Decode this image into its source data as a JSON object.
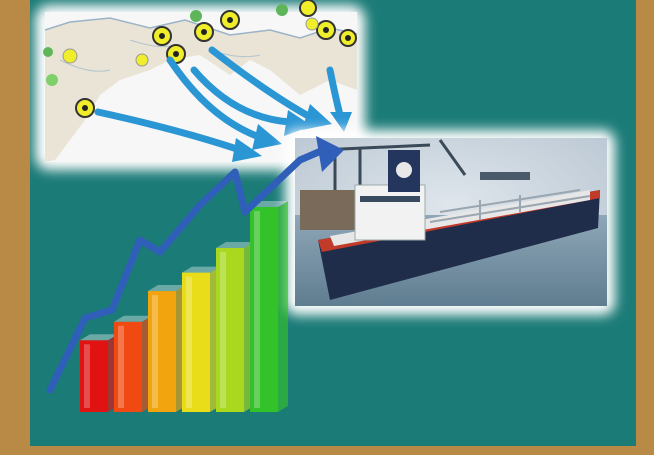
{
  "colors": {
    "frame": "#b98a45",
    "panel": "#1b7b77",
    "arrow": "#2a96d4",
    "trend_line": "#2f5fb8",
    "port_marker": "#f0ee2a",
    "bars": [
      "#e01212",
      "#f04a12",
      "#f2a40f",
      "#e9dc18",
      "#a9d81e",
      "#33c22a"
    ]
  },
  "bar_levels": [
    0.35,
    0.44,
    0.59,
    0.68,
    0.8,
    1.0
  ],
  "icons": {
    "map": "coastline-map-icon",
    "ship": "oil-tanker-icon",
    "chart": "growth-bar-chart-icon"
  }
}
